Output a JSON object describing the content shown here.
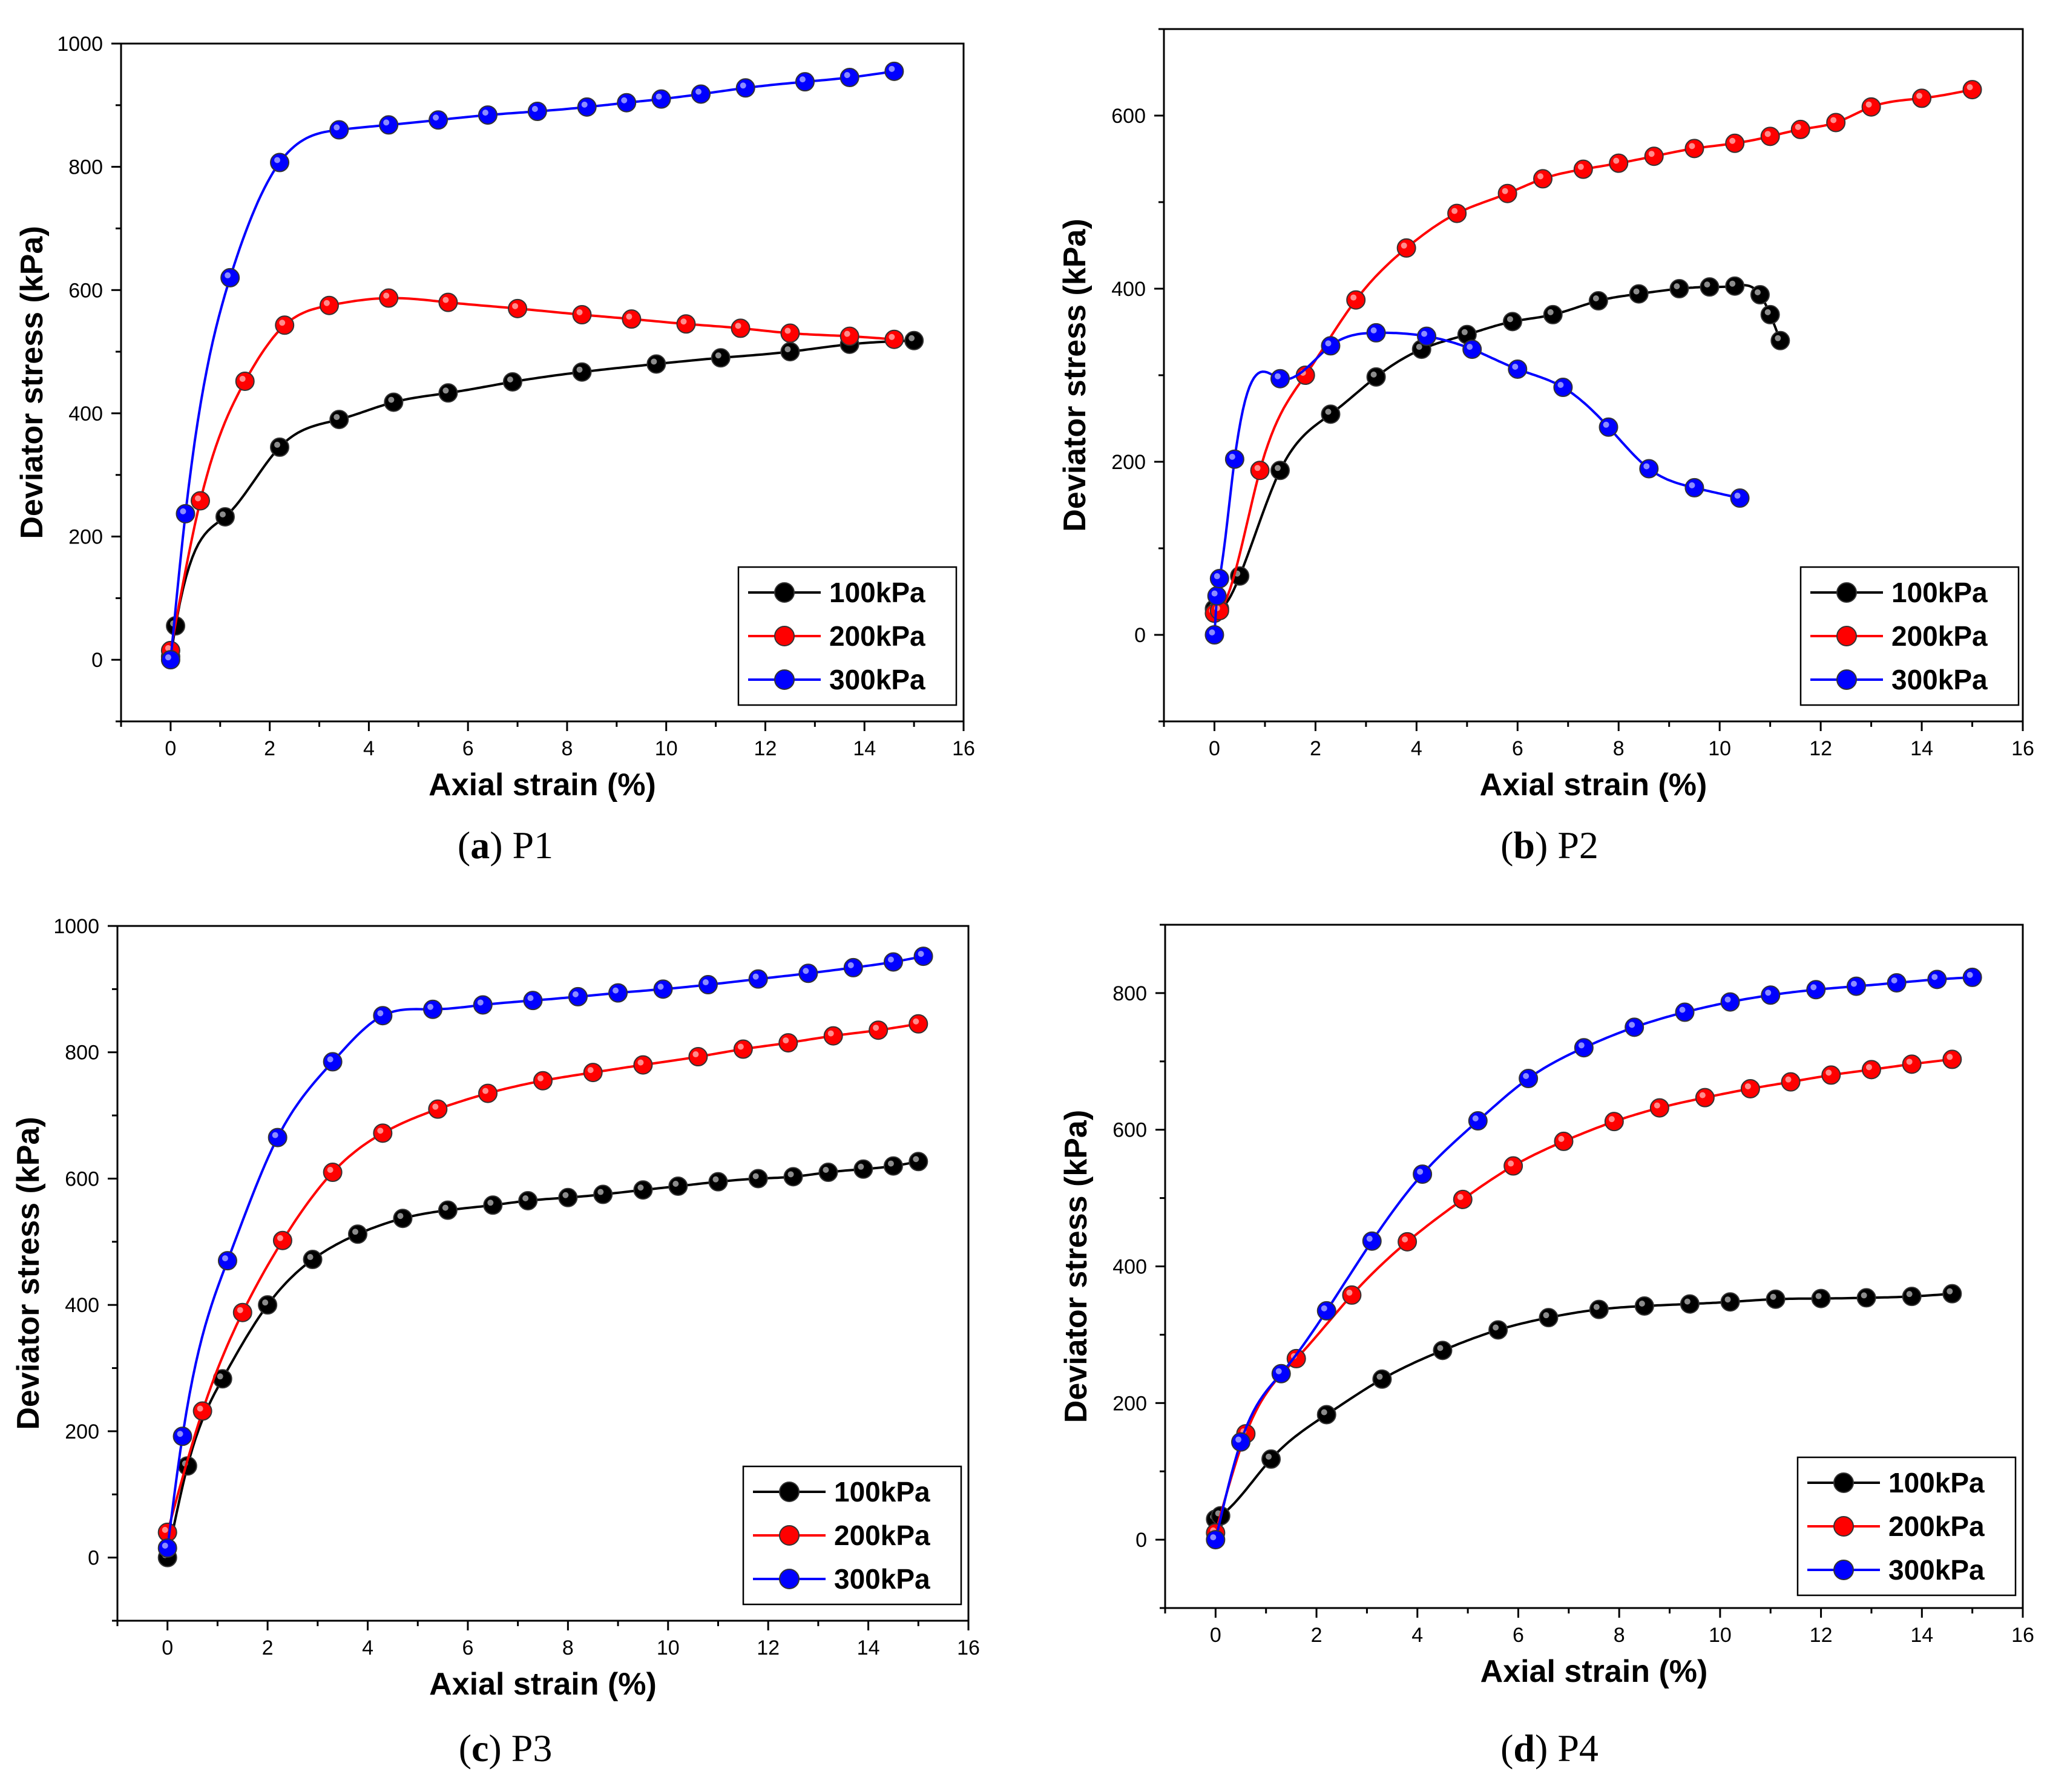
{
  "figure": {
    "xlabel": "Axial strain (%)",
    "ylabel": "Deviator stress (kPa)"
  },
  "colors": {
    "100kPa": "#000000",
    "200kPa": "#ff0000",
    "300kPa": "#0000ff"
  },
  "chart_data": [
    {
      "type": "line",
      "panel": "a",
      "caption_letter": "a",
      "caption_label": "P1",
      "xlabel": "Axial strain (%)",
      "ylabel": "Deviator stress (kPa)",
      "xlim": [
        -1,
        16
      ],
      "ylim": [
        -100,
        1000
      ],
      "xticks": [
        0,
        2,
        4,
        6,
        8,
        10,
        12,
        14,
        16
      ],
      "yticks": [
        0,
        200,
        400,
        600,
        800,
        1000
      ],
      "legend_position": "bottom-right",
      "series": [
        {
          "name": "100kPa",
          "color": "#000000",
          "x": [
            0,
            0.1,
            1.1,
            2.2,
            3.4,
            4.5,
            5.6,
            6.9,
            8.3,
            9.8,
            11.1,
            12.5,
            13.7,
            15.0
          ],
          "y": [
            5,
            55,
            232,
            345,
            390,
            418,
            433,
            451,
            467,
            480,
            490,
            500,
            512,
            518
          ]
        },
        {
          "name": "200kPa",
          "color": "#ff0000",
          "x": [
            0,
            0.6,
            1.5,
            2.3,
            3.2,
            4.4,
            5.6,
            7.0,
            8.3,
            9.3,
            10.4,
            11.5,
            12.5,
            13.7,
            14.6
          ],
          "y": [
            15,
            258,
            452,
            543,
            575,
            587,
            580,
            570,
            560,
            553,
            545,
            538,
            530,
            525,
            520
          ]
        },
        {
          "name": "300kPa",
          "color": "#0000ff",
          "x": [
            0,
            0.3,
            1.2,
            2.2,
            3.4,
            4.4,
            5.4,
            6.4,
            7.4,
            8.4,
            9.2,
            9.9,
            10.7,
            11.6,
            12.8,
            13.7,
            14.6
          ],
          "y": [
            0,
            237,
            620,
            807,
            860,
            868,
            876,
            884,
            890,
            897,
            904,
            910,
            918,
            928,
            938,
            945,
            955
          ]
        }
      ]
    },
    {
      "type": "line",
      "panel": "b",
      "caption_letter": "b",
      "caption_label": "P2",
      "xlabel": "Axial strain (%)",
      "ylabel": "Deviator stress (kPa)",
      "xlim": [
        -1,
        16
      ],
      "ylim": [
        -100,
        700
      ],
      "xticks": [
        0,
        2,
        4,
        6,
        8,
        10,
        12,
        14,
        16
      ],
      "yticks": [
        0,
        200,
        400,
        600
      ],
      "legend_position": "bottom-right",
      "series": [
        {
          "name": "100kPa",
          "color": "#000000",
          "x": [
            0,
            0.1,
            0.5,
            1.3,
            2.3,
            3.2,
            4.1,
            5.0,
            5.9,
            6.7,
            7.6,
            8.4,
            9.2,
            9.8,
            10.3,
            10.8,
            11.0,
            11.2
          ],
          "y": [
            30,
            30,
            68,
            190,
            255,
            298,
            330,
            347,
            362,
            370,
            386,
            394,
            400,
            402,
            403,
            393,
            370,
            340
          ]
        },
        {
          "name": "200kPa",
          "color": "#ff0000",
          "x": [
            0,
            0.1,
            0.9,
            1.8,
            2.8,
            3.8,
            4.8,
            5.8,
            6.5,
            7.3,
            8.0,
            8.7,
            9.5,
            10.3,
            11.0,
            11.6,
            12.3,
            13.0,
            14.0,
            15.0
          ],
          "y": [
            25,
            28,
            190,
            300,
            387,
            447,
            487,
            510,
            527,
            538,
            545,
            553,
            562,
            568,
            576,
            584,
            592,
            610,
            620,
            630
          ]
        },
        {
          "name": "300kPa",
          "color": "#0000ff",
          "x": [
            0,
            0.05,
            0.1,
            0.4,
            1.3,
            2.3,
            3.2,
            4.2,
            5.1,
            6.0,
            6.9,
            7.8,
            8.6,
            9.5,
            10.4
          ],
          "y": [
            0,
            45,
            65,
            203,
            296,
            334,
            349,
            345,
            330,
            307,
            286,
            240,
            192,
            170,
            158
          ]
        }
      ]
    },
    {
      "type": "line",
      "panel": "c",
      "caption_letter": "c",
      "caption_label": "P3",
      "xlabel": "Axial strain (%)",
      "ylabel": "Deviator stress (kPa)",
      "xlim": [
        -1,
        16
      ],
      "ylim": [
        -100,
        1000
      ],
      "xticks": [
        0,
        2,
        4,
        6,
        8,
        10,
        12,
        14,
        16
      ],
      "yticks": [
        0,
        200,
        400,
        600,
        800,
        1000
      ],
      "legend_position": "bottom-right",
      "series": [
        {
          "name": "100kPa",
          "color": "#000000",
          "x": [
            0,
            0.4,
            1.1,
            2.0,
            2.9,
            3.8,
            4.7,
            5.6,
            6.5,
            7.2,
            8.0,
            8.7,
            9.5,
            10.2,
            11.0,
            11.8,
            12.5,
            13.2,
            13.9,
            14.5,
            15.0
          ],
          "y": [
            0,
            145,
            283,
            400,
            472,
            512,
            537,
            550,
            558,
            565,
            570,
            575,
            582,
            588,
            595,
            600,
            603,
            610,
            615,
            620,
            627
          ]
        },
        {
          "name": "200kPa",
          "color": "#ff0000",
          "x": [
            0,
            0.7,
            1.5,
            2.3,
            3.3,
            4.3,
            5.4,
            6.4,
            7.5,
            8.5,
            9.5,
            10.6,
            11.5,
            12.4,
            13.3,
            14.2,
            15.0
          ],
          "y": [
            40,
            232,
            388,
            502,
            610,
            672,
            710,
            735,
            755,
            768,
            780,
            793,
            805,
            815,
            826,
            835,
            845
          ]
        },
        {
          "name": "300kPa",
          "color": "#0000ff",
          "x": [
            0,
            0.3,
            1.2,
            2.2,
            3.3,
            4.3,
            5.3,
            6.3,
            7.3,
            8.2,
            9.0,
            9.9,
            10.8,
            11.8,
            12.8,
            13.7,
            14.5,
            15.1
          ],
          "y": [
            15,
            192,
            470,
            665,
            785,
            858,
            868,
            875,
            882,
            888,
            894,
            900,
            907,
            916,
            925,
            934,
            943,
            952
          ]
        }
      ]
    },
    {
      "type": "line",
      "panel": "d",
      "caption_letter": "d",
      "caption_label": "P4",
      "xlabel": "Axial strain (%)",
      "ylabel": "Deviator stress (kPa)",
      "xlim": [
        -1,
        16
      ],
      "ylim": [
        -100,
        900
      ],
      "xticks": [
        0,
        2,
        4,
        6,
        8,
        10,
        12,
        14,
        16
      ],
      "yticks": [
        0,
        200,
        400,
        600,
        800
      ],
      "legend_position": "bottom-right",
      "series": [
        {
          "name": "100kPa",
          "color": "#000000",
          "x": [
            0,
            0.1,
            1.1,
            2.2,
            3.3,
            4.5,
            5.6,
            6.6,
            7.6,
            8.5,
            9.4,
            10.2,
            11.1,
            12.0,
            12.9,
            13.8,
            14.6
          ],
          "y": [
            30,
            35,
            118,
            183,
            235,
            277,
            307,
            325,
            337,
            342,
            345,
            348,
            352,
            353,
            354,
            356,
            360
          ]
        },
        {
          "name": "200kPa",
          "color": "#ff0000",
          "x": [
            0,
            0.6,
            1.6,
            2.7,
            3.8,
            4.9,
            5.9,
            6.9,
            7.9,
            8.8,
            9.7,
            10.6,
            11.4,
            12.2,
            13.0,
            13.8,
            14.6
          ],
          "y": [
            10,
            155,
            265,
            358,
            436,
            498,
            547,
            583,
            612,
            632,
            647,
            660,
            670,
            680,
            688,
            696,
            703
          ]
        },
        {
          "name": "300kPa",
          "color": "#0000ff",
          "x": [
            0,
            0.5,
            1.3,
            2.2,
            3.1,
            4.1,
            5.2,
            6.2,
            7.3,
            8.3,
            9.3,
            10.2,
            11.0,
            11.9,
            12.7,
            13.5,
            14.3,
            15.0
          ],
          "y": [
            0,
            143,
            243,
            335,
            437,
            535,
            613,
            675,
            720,
            750,
            772,
            787,
            797,
            805,
            810,
            815,
            820,
            823
          ]
        }
      ]
    }
  ]
}
